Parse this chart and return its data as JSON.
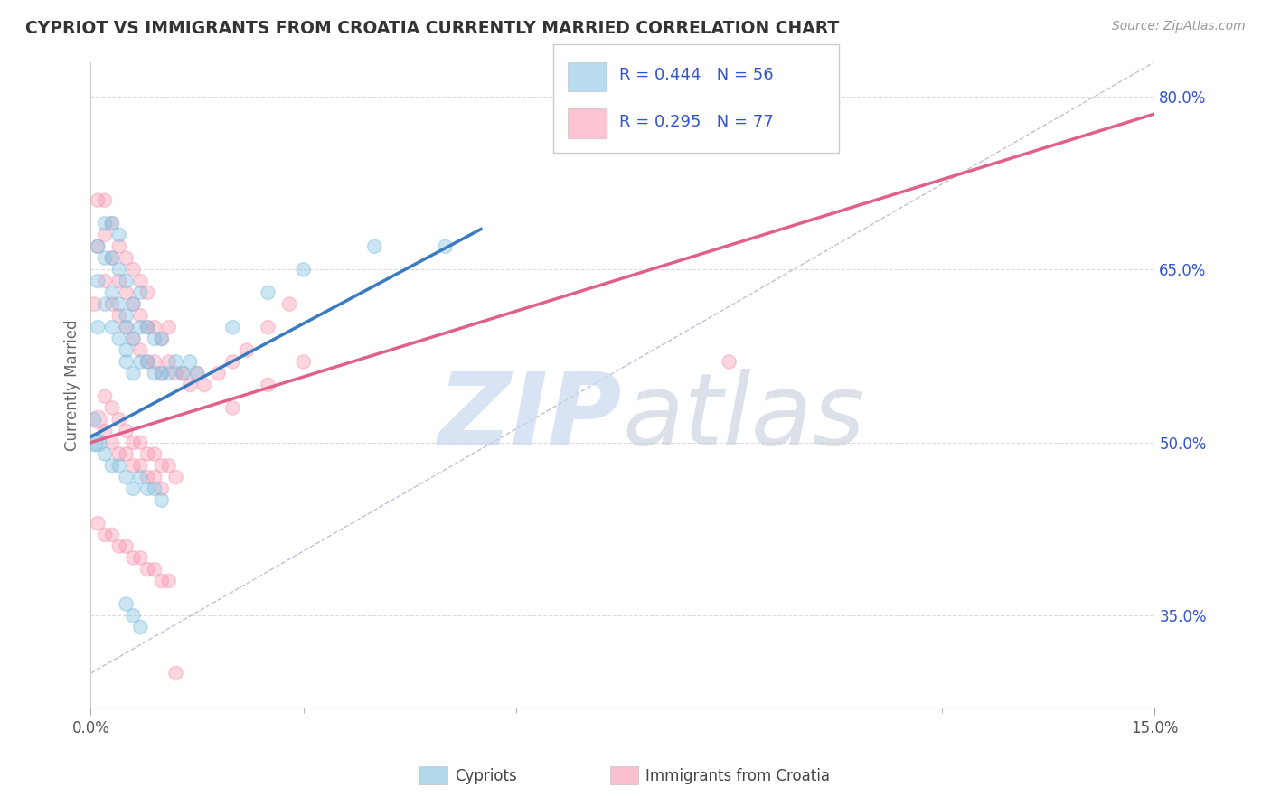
{
  "title": "CYPRIOT VS IMMIGRANTS FROM CROATIA CURRENTLY MARRIED CORRELATION CHART",
  "source": "Source: ZipAtlas.com",
  "ylabel": "Currently Married",
  "xlim": [
    0.0,
    0.15
  ],
  "ylim": [
    0.27,
    0.83
  ],
  "ytick_positions": [
    0.35,
    0.5,
    0.65,
    0.8
  ],
  "ytick_labels": [
    "35.0%",
    "50.0%",
    "65.0%",
    "80.0%"
  ],
  "blue_scatter_x": [
    0.0005,
    0.001,
    0.001,
    0.001,
    0.002,
    0.002,
    0.002,
    0.003,
    0.003,
    0.003,
    0.003,
    0.004,
    0.004,
    0.004,
    0.004,
    0.005,
    0.005,
    0.005,
    0.005,
    0.005,
    0.006,
    0.006,
    0.006,
    0.007,
    0.007,
    0.007,
    0.008,
    0.008,
    0.009,
    0.009,
    0.01,
    0.01,
    0.011,
    0.012,
    0.013,
    0.014,
    0.015,
    0.02,
    0.025,
    0.03,
    0.0005,
    0.001,
    0.002,
    0.003,
    0.004,
    0.005,
    0.006,
    0.007,
    0.008,
    0.009,
    0.01,
    0.04,
    0.05,
    0.005,
    0.006,
    0.007
  ],
  "blue_scatter_y": [
    0.52,
    0.6,
    0.64,
    0.67,
    0.62,
    0.66,
    0.69,
    0.6,
    0.63,
    0.66,
    0.69,
    0.59,
    0.62,
    0.65,
    0.68,
    0.58,
    0.61,
    0.64,
    0.57,
    0.6,
    0.56,
    0.59,
    0.62,
    0.57,
    0.6,
    0.63,
    0.57,
    0.6,
    0.56,
    0.59,
    0.56,
    0.59,
    0.56,
    0.57,
    0.56,
    0.57,
    0.56,
    0.6,
    0.63,
    0.65,
    0.5,
    0.5,
    0.49,
    0.48,
    0.48,
    0.47,
    0.46,
    0.47,
    0.46,
    0.46,
    0.45,
    0.67,
    0.67,
    0.36,
    0.35,
    0.34
  ],
  "blue_scatter_size": [
    120,
    120,
    120,
    120,
    120,
    120,
    120,
    120,
    120,
    120,
    120,
    120,
    120,
    120,
    120,
    120,
    120,
    120,
    120,
    120,
    120,
    120,
    120,
    120,
    120,
    120,
    120,
    120,
    120,
    120,
    120,
    120,
    120,
    120,
    120,
    120,
    120,
    120,
    120,
    120,
    200,
    200,
    120,
    120,
    120,
    120,
    120,
    120,
    120,
    120,
    120,
    120,
    120,
    120,
    120,
    120
  ],
  "pink_scatter_x": [
    0.0005,
    0.001,
    0.001,
    0.002,
    0.002,
    0.002,
    0.003,
    0.003,
    0.003,
    0.004,
    0.004,
    0.004,
    0.005,
    0.005,
    0.005,
    0.006,
    0.006,
    0.006,
    0.007,
    0.007,
    0.007,
    0.008,
    0.008,
    0.008,
    0.009,
    0.009,
    0.01,
    0.01,
    0.011,
    0.011,
    0.012,
    0.013,
    0.014,
    0.015,
    0.016,
    0.018,
    0.02,
    0.022,
    0.025,
    0.028,
    0.001,
    0.002,
    0.003,
    0.004,
    0.005,
    0.006,
    0.007,
    0.008,
    0.009,
    0.01,
    0.002,
    0.003,
    0.004,
    0.005,
    0.006,
    0.007,
    0.008,
    0.009,
    0.01,
    0.011,
    0.012,
    0.02,
    0.025,
    0.03,
    0.09,
    0.001,
    0.002,
    0.003,
    0.004,
    0.005,
    0.006,
    0.007,
    0.008,
    0.009,
    0.01,
    0.011,
    0.012
  ],
  "pink_scatter_y": [
    0.62,
    0.67,
    0.71,
    0.64,
    0.68,
    0.71,
    0.62,
    0.66,
    0.69,
    0.61,
    0.64,
    0.67,
    0.6,
    0.63,
    0.66,
    0.59,
    0.62,
    0.65,
    0.58,
    0.61,
    0.64,
    0.57,
    0.6,
    0.63,
    0.57,
    0.6,
    0.56,
    0.59,
    0.57,
    0.6,
    0.56,
    0.56,
    0.55,
    0.56,
    0.55,
    0.56,
    0.57,
    0.58,
    0.6,
    0.62,
    0.52,
    0.51,
    0.5,
    0.49,
    0.49,
    0.48,
    0.48,
    0.47,
    0.47,
    0.46,
    0.54,
    0.53,
    0.52,
    0.51,
    0.5,
    0.5,
    0.49,
    0.49,
    0.48,
    0.48,
    0.47,
    0.53,
    0.55,
    0.57,
    0.57,
    0.43,
    0.42,
    0.42,
    0.41,
    0.41,
    0.4,
    0.4,
    0.39,
    0.39,
    0.38,
    0.38,
    0.3
  ],
  "pink_scatter_size": [
    120,
    120,
    120,
    120,
    120,
    120,
    120,
    120,
    120,
    120,
    120,
    120,
    120,
    120,
    120,
    120,
    120,
    120,
    120,
    120,
    120,
    120,
    120,
    120,
    120,
    120,
    120,
    120,
    120,
    120,
    120,
    120,
    120,
    120,
    120,
    120,
    120,
    120,
    120,
    120,
    200,
    120,
    120,
    120,
    120,
    120,
    120,
    120,
    120,
    120,
    120,
    120,
    120,
    120,
    120,
    120,
    120,
    120,
    120,
    120,
    120,
    120,
    120,
    120,
    120,
    120,
    120,
    120,
    120,
    120,
    120,
    120,
    120,
    120,
    120,
    120,
    120
  ],
  "blue_line": {
    "x0": 0.0,
    "x1": 0.055,
    "y0": 0.505,
    "y1": 0.685
  },
  "pink_line": {
    "x0": 0.0,
    "x1": 0.15,
    "y0": 0.5,
    "y1": 0.785
  },
  "ref_line": {
    "x0": 0.0,
    "x1": 0.15,
    "y0": 0.3,
    "y1": 0.83
  },
  "blue_color": "#7fbfdf",
  "pink_color": "#f896b0",
  "blue_line_color": "#3a7abf",
  "pink_line_color": "#e0608a",
  "ref_line_color": "#b0b0cc",
  "background_color": "#ffffff",
  "grid_color": "#cccccc",
  "title_color": "#333333",
  "source_color": "#999999",
  "legend_text_color": "#3355cc",
  "watermark_zip_color": "#c8d8ee",
  "watermark_atlas_color": "#c0c8d8"
}
